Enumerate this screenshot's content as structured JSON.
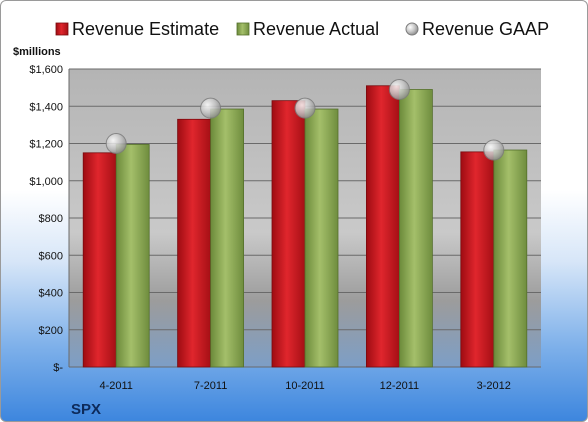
{
  "chart_data": {
    "type": "bar",
    "ylabel": "$millions",
    "ticker": "SPX",
    "categories": [
      "4-2011",
      "7-2011",
      "10-2011",
      "12-2011",
      "3-2012"
    ],
    "ylim": [
      0,
      1600
    ],
    "yticks": [
      {
        "value": 0,
        "label": "$-"
      },
      {
        "value": 200,
        "label": "$200"
      },
      {
        "value": 400,
        "label": "$400"
      },
      {
        "value": 600,
        "label": "$600"
      },
      {
        "value": 800,
        "label": "$800"
      },
      {
        "value": 1000,
        "label": "$1,000"
      },
      {
        "value": 1200,
        "label": "$1,200"
      },
      {
        "value": 1400,
        "label": "$1,400"
      },
      {
        "value": 1600,
        "label": "$1,600"
      }
    ],
    "series": [
      {
        "name": "Revenue Estimate",
        "type": "bar",
        "color": "#c8161d",
        "values": [
          1150,
          1330,
          1430,
          1510,
          1155
        ]
      },
      {
        "name": "Revenue Actual",
        "type": "bar",
        "color": "#8aa650",
        "values": [
          1195,
          1385,
          1385,
          1490,
          1165
        ]
      },
      {
        "name": "Revenue GAAP",
        "type": "marker",
        "color": "#b9b9b9",
        "values": [
          1200,
          1390,
          1390,
          1490,
          1165
        ]
      }
    ],
    "legend_position": "top",
    "grid": true
  }
}
